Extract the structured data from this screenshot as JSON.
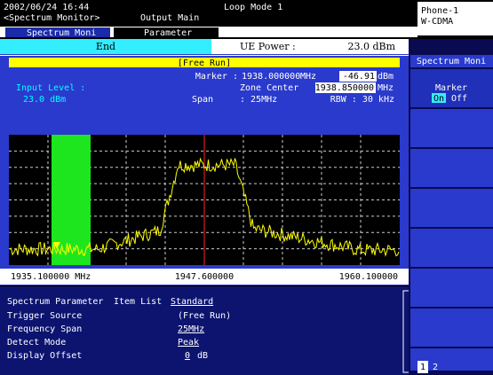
{
  "header": {
    "datetime": "2002/06/24 16:44",
    "screen": "<Spectrum Monitor>",
    "output": "Output Main",
    "mode": "Loop Mode 1",
    "phone": "Phone-1",
    "system": "W-CDMA"
  },
  "tabs": [
    "Spectrum Moni",
    "Parameter"
  ],
  "status": {
    "state": "End",
    "ue_power_label": "UE Power :",
    "ue_power": "23.0 dBm"
  },
  "monitor": {
    "trigger": "[Free Run]",
    "marker_label": "Marker :",
    "marker_freq": "1938.000000",
    "marker_freq_unit": "MHz",
    "marker_level": "-46.91",
    "marker_level_unit": "dBm",
    "input_level_label": "Input Level :",
    "input_level": "23.0 dBm",
    "zone_center_label": "Zone Center",
    "zone_center": "1938.850000",
    "zone_center_unit": "MHz",
    "span_label": "Span",
    "span": ": 25MHz",
    "rbw": "RBW : 30 kHz",
    "freq_start": "1935.100000 MHz",
    "freq_center": "1947.600000",
    "freq_stop": "1960.100000"
  },
  "parameters": {
    "title": "Spectrum Parameter",
    "item_list_label": "Item List",
    "item_list": "Standard",
    "rows": [
      [
        "Trigger Source",
        "(Free Run)"
      ],
      [
        "Frequency Span",
        "25MHz"
      ],
      [
        "Detect Mode",
        "Peak"
      ],
      [
        "Display Offset",
        "0",
        "dB"
      ]
    ]
  },
  "softkeys": {
    "title": "Spectrum Moni",
    "marker": "Marker",
    "on": "On",
    "off": "Off",
    "pages": [
      "1",
      "2"
    ]
  }
}
